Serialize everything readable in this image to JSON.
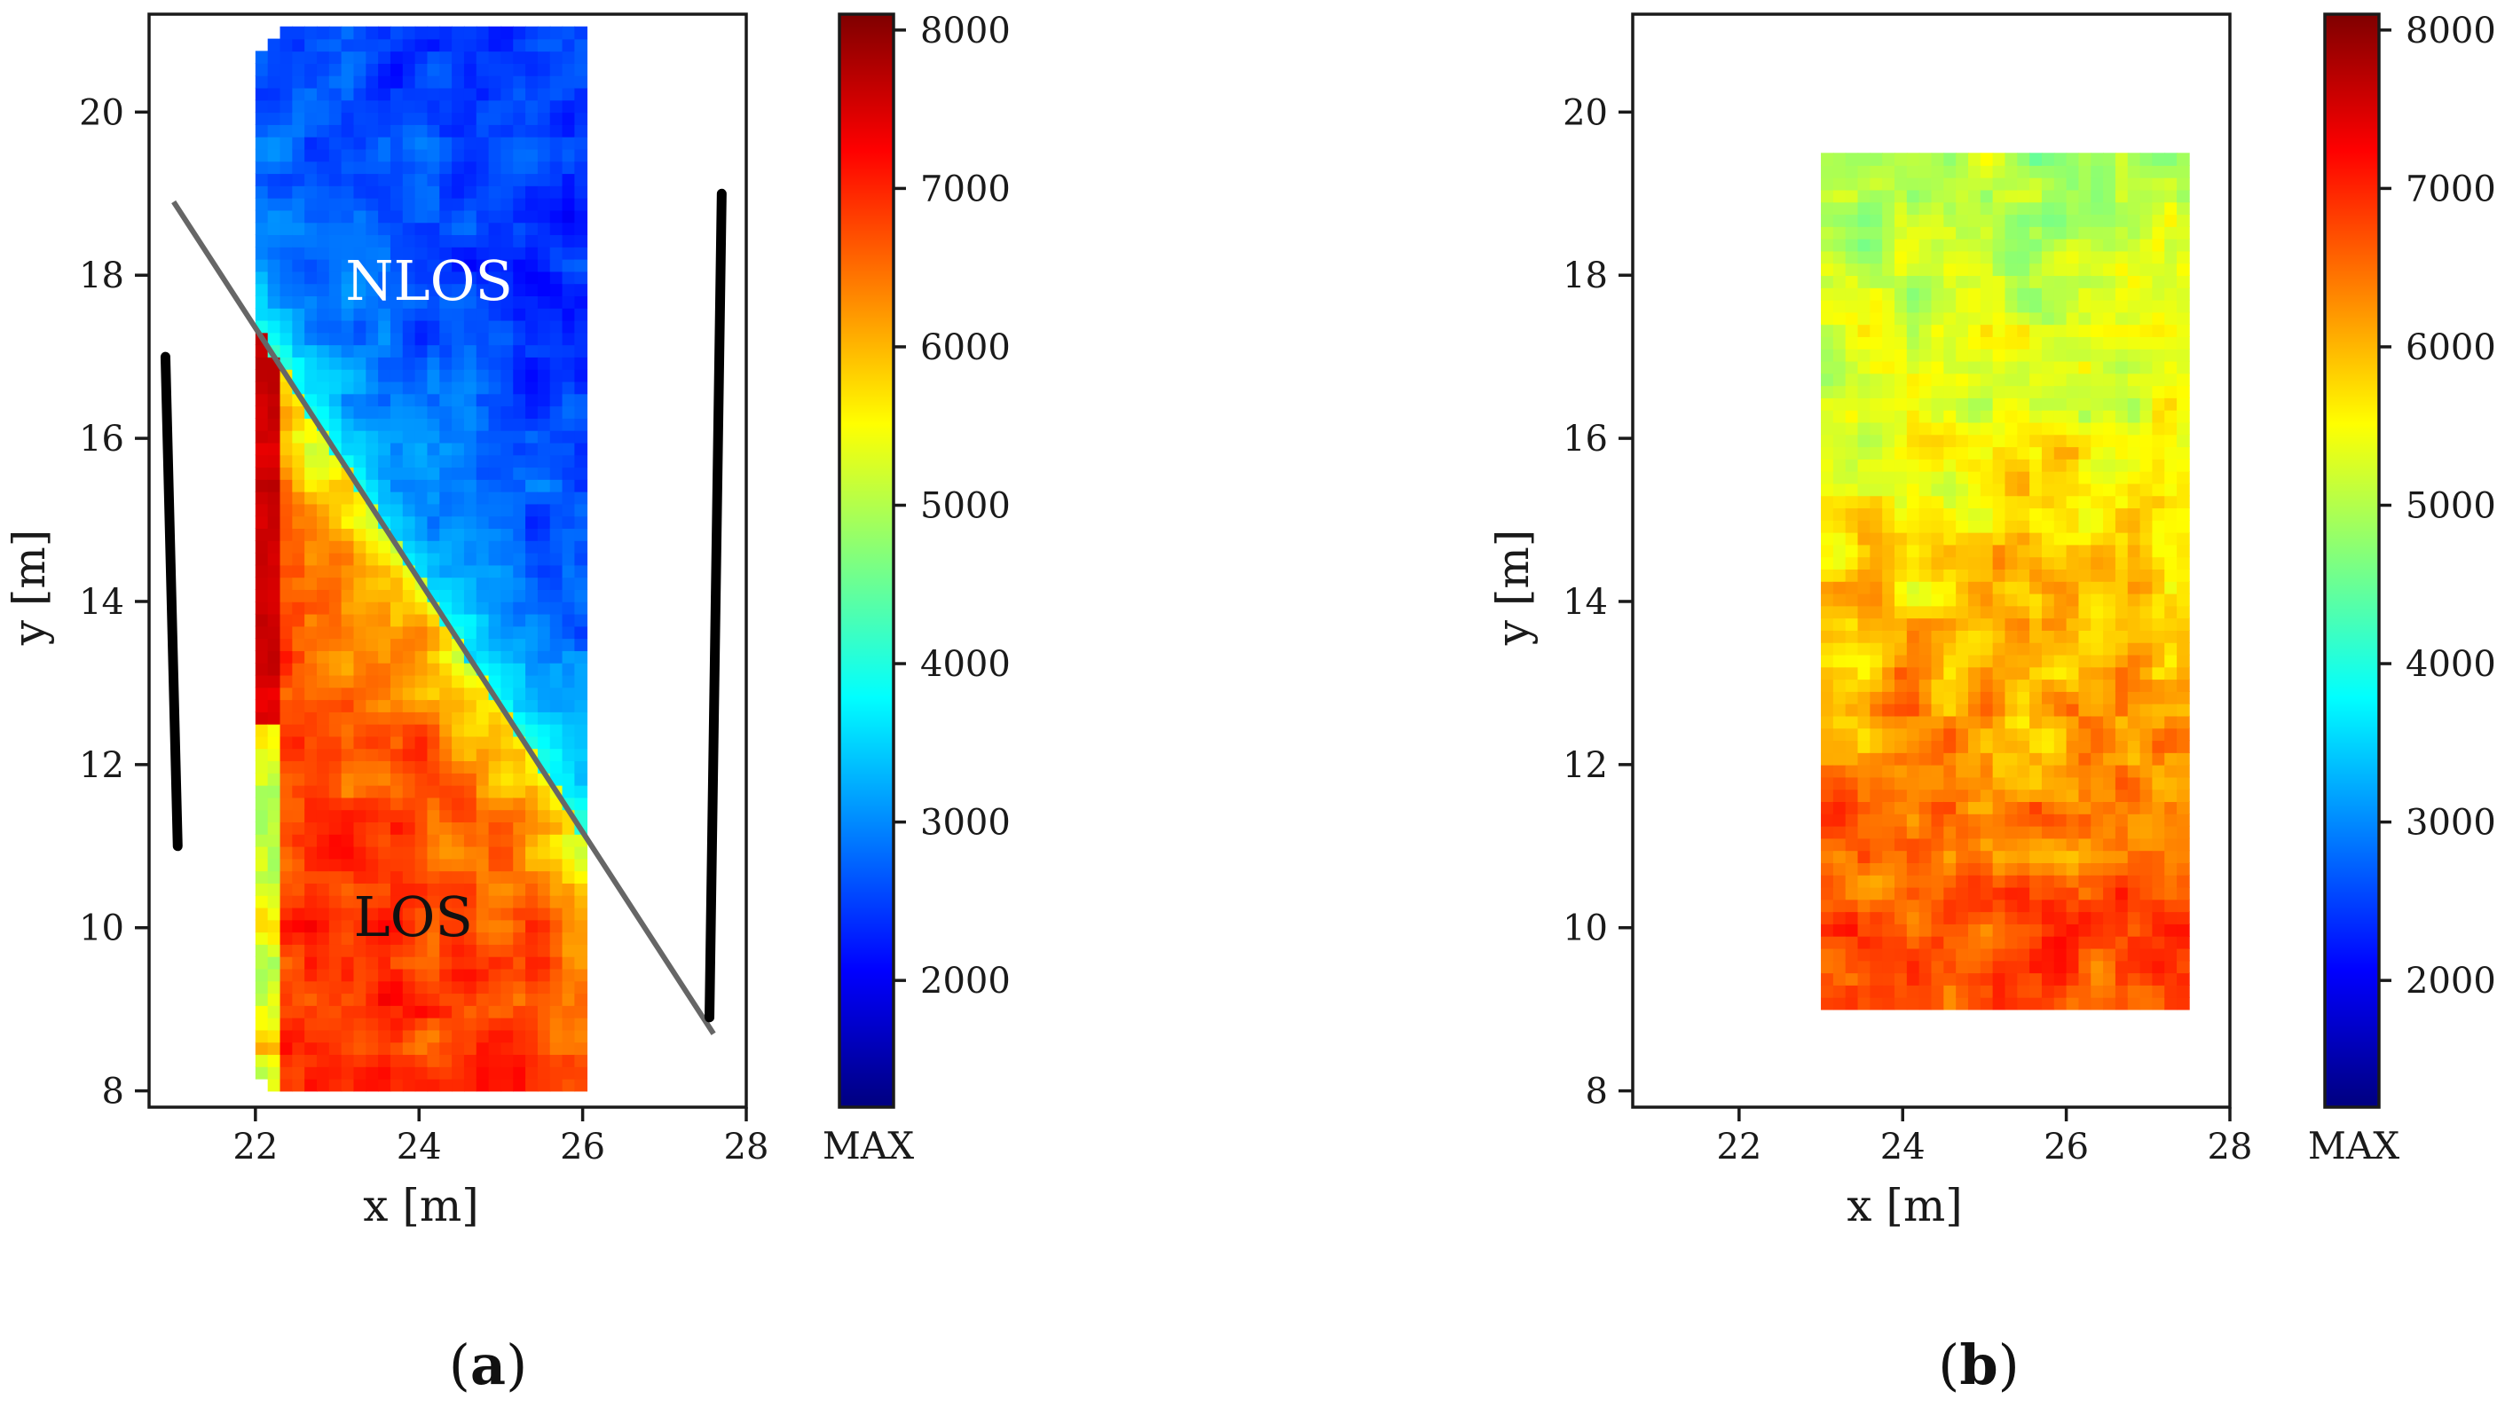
{
  "colormap": {
    "name": "jet",
    "stops": [
      "#00007f",
      "#0000ff",
      "#007fff",
      "#00ffff",
      "#7fff7f",
      "#ffff00",
      "#ff7f00",
      "#ff0000",
      "#7f0000"
    ]
  },
  "chart_data": [
    {
      "id": "a",
      "type": "heatmap",
      "caption": "(a)",
      "xlabel": "x [m]",
      "ylabel": "y [m]",
      "xlim": [
        20.7,
        28
      ],
      "ylim": [
        7.8,
        21.2
      ],
      "xticks": [
        "22",
        "24",
        "26",
        "28"
      ],
      "yticks": [
        "8",
        "10",
        "12",
        "14",
        "16",
        "18",
        "20"
      ],
      "heatmap_extent": {
        "x": [
          22,
          26
        ],
        "y": [
          8,
          21
        ]
      },
      "field_model": "split",
      "boundary_line": {
        "x": [
          21,
          27.6
        ],
        "y": [
          18.9,
          8.7
        ]
      },
      "walls": [
        {
          "x": [
            20.9,
            21.05
          ],
          "y": [
            17.0,
            11.0
          ]
        },
        {
          "x": [
            27.7,
            27.55
          ],
          "y": [
            19.0,
            8.9
          ]
        }
      ],
      "annotations": [
        {
          "text": "NLOS",
          "x": 23.1,
          "y": 17.7,
          "color": "#ffffff"
        },
        {
          "text": "LOS",
          "x": 23.2,
          "y": 9.9,
          "color": "#111111"
        }
      ],
      "colorbar": {
        "vmin": 1200,
        "vmax": 8100,
        "ticks": [
          "2000",
          "3000",
          "4000",
          "5000",
          "6000",
          "7000",
          "8000"
        ],
        "label": "MAX"
      }
    },
    {
      "id": "b",
      "type": "heatmap",
      "caption": "(b)",
      "xlabel": "x [m]",
      "ylabel": "y [m]",
      "xlim": [
        20.7,
        28
      ],
      "ylim": [
        7.8,
        21.2
      ],
      "xticks": [
        "22",
        "24",
        "26",
        "28"
      ],
      "yticks": [
        "8",
        "10",
        "12",
        "14",
        "16",
        "18",
        "20"
      ],
      "heatmap_extent": {
        "x": [
          23,
          27.5
        ],
        "y": [
          9,
          19.5
        ]
      },
      "field_model": "gradient",
      "colorbar": {
        "vmin": 1200,
        "vmax": 8100,
        "ticks": [
          "2000",
          "3000",
          "4000",
          "5000",
          "6000",
          "7000",
          "8000"
        ],
        "label": "MAX"
      }
    }
  ]
}
